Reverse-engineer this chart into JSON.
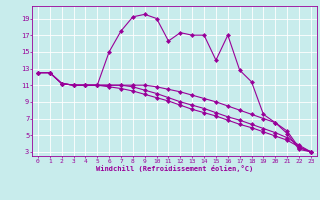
{
  "xlabel": "Windchill (Refroidissement éolien,°C)",
  "bg_color": "#c8ecec",
  "line_color": "#990099",
  "grid_color": "#ffffff",
  "xlim": [
    -0.5,
    23.5
  ],
  "ylim": [
    2.5,
    20.5
  ],
  "xticks": [
    0,
    1,
    2,
    3,
    4,
    5,
    6,
    7,
    8,
    9,
    10,
    11,
    12,
    13,
    14,
    15,
    16,
    17,
    18,
    19,
    20,
    21,
    22,
    23
  ],
  "yticks": [
    3,
    5,
    7,
    9,
    11,
    13,
    15,
    17,
    19
  ],
  "series": [
    [
      12.5,
      12.5,
      11.2,
      11.0,
      11.0,
      11.0,
      15.0,
      17.5,
      19.2,
      19.5,
      19.0,
      16.3,
      17.3,
      17.0,
      17.0,
      14.0,
      17.0,
      12.8,
      11.4,
      7.5,
      6.5,
      5.2,
      3.3,
      3.0
    ],
    [
      12.5,
      12.5,
      11.2,
      11.0,
      11.0,
      11.0,
      11.0,
      11.0,
      11.0,
      11.0,
      10.8,
      10.5,
      10.2,
      9.8,
      9.4,
      9.0,
      8.5,
      8.0,
      7.5,
      7.0,
      6.5,
      5.5,
      3.5,
      3.0
    ],
    [
      12.5,
      12.5,
      11.2,
      11.0,
      11.0,
      11.0,
      11.0,
      11.0,
      10.8,
      10.4,
      10.0,
      9.5,
      9.0,
      8.6,
      8.2,
      7.7,
      7.2,
      6.8,
      6.3,
      5.8,
      5.3,
      4.7,
      3.8,
      3.0
    ],
    [
      12.5,
      12.5,
      11.2,
      11.0,
      11.0,
      11.0,
      10.8,
      10.6,
      10.3,
      9.9,
      9.5,
      9.1,
      8.6,
      8.1,
      7.7,
      7.3,
      6.8,
      6.3,
      5.9,
      5.4,
      4.9,
      4.4,
      3.6,
      3.0
    ]
  ]
}
